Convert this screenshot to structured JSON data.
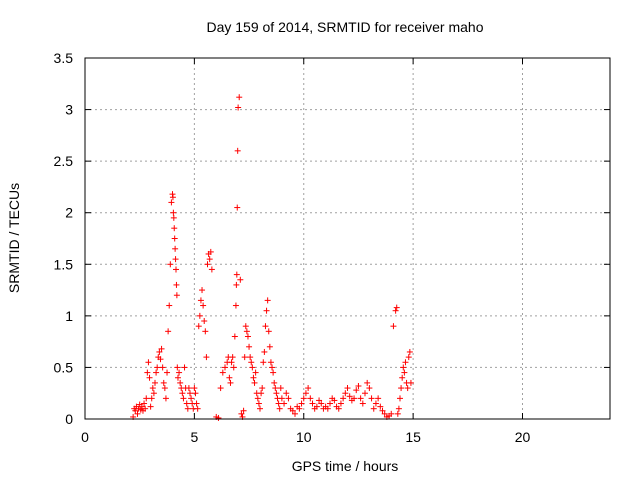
{
  "chart_data": {
    "type": "scatter",
    "title": "Day 159 of 2014, SRMTID for receiver maho",
    "xlabel": "GPS time / hours",
    "ylabel": "SRMTID / TECUs",
    "xlim": [
      0,
      24
    ],
    "ylim": [
      0,
      3.5
    ],
    "x_ticks": [
      "0",
      "5",
      "10",
      "15",
      "20"
    ],
    "y_ticks": [
      "0",
      "0.5",
      "1",
      "1.5",
      "2",
      "2.5",
      "3",
      "3.5"
    ],
    "grid": true,
    "marker": "+",
    "marker_color": "#ff0000",
    "series": [
      {
        "x": [
          2.2,
          2.25,
          2.3,
          2.35,
          2.4,
          2.45,
          2.5,
          2.55,
          2.6,
          2.65,
          2.7,
          2.75,
          2.8,
          2.85,
          2.9,
          2.95,
          3.0,
          3.05,
          3.1,
          3.15,
          3.2,
          3.25,
          3.3,
          3.35,
          3.4,
          3.45,
          3.5,
          3.55,
          3.6,
          3.65,
          3.7,
          3.75,
          3.8,
          3.85,
          3.9,
          3.95,
          4.0,
          4.02,
          4.04,
          4.06,
          4.08,
          4.1,
          4.12,
          4.14,
          4.16,
          4.18,
          4.2,
          4.22,
          4.25,
          4.3,
          4.35,
          4.4,
          4.45,
          4.5,
          4.55,
          4.6,
          4.65,
          4.7,
          4.75,
          4.8,
          4.85,
          4.9,
          4.95,
          5.0,
          5.05,
          5.1,
          5.15,
          5.2,
          5.25,
          5.3,
          5.35,
          5.4,
          5.45,
          5.5,
          5.55,
          5.6,
          5.65,
          5.7,
          5.75,
          5.8,
          6.0,
          6.1,
          6.2,
          6.3,
          6.4,
          6.5,
          6.55,
          6.6,
          6.65,
          6.7,
          6.75,
          6.8,
          6.85,
          6.9,
          6.92,
          6.94,
          6.96,
          6.98,
          7.0,
          7.05,
          7.1,
          7.15,
          7.2,
          7.25,
          7.3,
          7.35,
          7.4,
          7.45,
          7.5,
          7.55,
          7.6,
          7.65,
          7.7,
          7.75,
          7.8,
          7.85,
          7.9,
          7.95,
          8.0,
          8.05,
          8.1,
          8.15,
          8.2,
          8.25,
          8.3,
          8.35,
          8.4,
          8.45,
          8.5,
          8.55,
          8.6,
          8.65,
          8.7,
          8.75,
          8.8,
          8.85,
          8.9,
          8.95,
          9.0,
          9.1,
          9.2,
          9.3,
          9.4,
          9.5,
          9.6,
          9.7,
          9.8,
          9.9,
          10.0,
          10.1,
          10.2,
          10.3,
          10.4,
          10.5,
          10.6,
          10.7,
          10.8,
          10.9,
          11.0,
          11.1,
          11.2,
          11.3,
          11.4,
          11.5,
          11.6,
          11.7,
          11.8,
          11.9,
          12.0,
          12.1,
          12.2,
          12.3,
          12.4,
          12.5,
          12.6,
          12.7,
          12.8,
          12.9,
          13.0,
          13.1,
          13.2,
          13.3,
          13.4,
          13.5,
          13.6,
          13.7,
          13.8,
          13.9,
          14.0,
          14.1,
          14.2,
          14.25,
          14.3,
          14.35,
          14.4,
          14.45,
          14.5,
          14.55,
          14.6,
          14.65,
          14.7,
          14.75,
          14.8,
          14.85,
          14.9
        ],
        "y": [
          0.02,
          0.1,
          0.08,
          0.12,
          0.05,
          0.1,
          0.14,
          0.09,
          0.12,
          0.08,
          0.15,
          0.1,
          0.2,
          0.45,
          0.55,
          0.4,
          0.12,
          0.2,
          0.3,
          0.25,
          0.35,
          0.45,
          0.5,
          0.6,
          0.65,
          0.58,
          0.68,
          0.5,
          0.35,
          0.3,
          0.2,
          0.45,
          0.85,
          1.1,
          1.5,
          2.1,
          2.18,
          2.15,
          2.0,
          1.95,
          1.85,
          1.75,
          1.65,
          1.55,
          1.45,
          1.3,
          1.2,
          0.5,
          0.4,
          0.45,
          0.35,
          0.3,
          0.25,
          0.2,
          0.5,
          0.3,
          0.15,
          0.1,
          0.3,
          0.25,
          0.2,
          0.15,
          0.1,
          0.3,
          0.25,
          0.15,
          0.1,
          0.9,
          1.0,
          1.15,
          1.25,
          1.1,
          0.95,
          0.85,
          0.6,
          1.5,
          1.6,
          1.55,
          1.62,
          1.45,
          0.02,
          0.01,
          0.3,
          0.45,
          0.5,
          0.55,
          0.6,
          0.4,
          0.35,
          0.55,
          0.6,
          0.5,
          0.8,
          1.1,
          1.3,
          1.4,
          2.05,
          2.6,
          3.02,
          3.12,
          1.35,
          0.05,
          0.02,
          0.08,
          0.6,
          0.9,
          0.85,
          0.8,
          0.7,
          0.6,
          0.55,
          0.5,
          0.4,
          0.35,
          0.45,
          0.25,
          0.2,
          0.15,
          0.1,
          0.25,
          0.3,
          0.55,
          0.65,
          0.9,
          1.05,
          1.15,
          0.85,
          0.7,
          0.55,
          0.5,
          0.45,
          0.35,
          0.3,
          0.25,
          0.2,
          0.15,
          0.1,
          0.3,
          0.2,
          0.15,
          0.25,
          0.2,
          0.1,
          0.08,
          0.05,
          0.12,
          0.1,
          0.15,
          0.2,
          0.25,
          0.3,
          0.2,
          0.15,
          0.1,
          0.12,
          0.18,
          0.15,
          0.1,
          0.12,
          0.1,
          0.15,
          0.2,
          0.18,
          0.12,
          0.1,
          0.15,
          0.2,
          0.25,
          0.3,
          0.22,
          0.18,
          0.2,
          0.28,
          0.32,
          0.2,
          0.15,
          0.25,
          0.35,
          0.3,
          0.2,
          0.1,
          0.15,
          0.2,
          0.12,
          0.08,
          0.05,
          0.02,
          0.03,
          0.05,
          0.9,
          1.05,
          1.08,
          0.05,
          0.1,
          0.2,
          0.3,
          0.4,
          0.5,
          0.45,
          0.55,
          0.35,
          0.3,
          0.6,
          0.65,
          0.35
        ]
      }
    ]
  }
}
